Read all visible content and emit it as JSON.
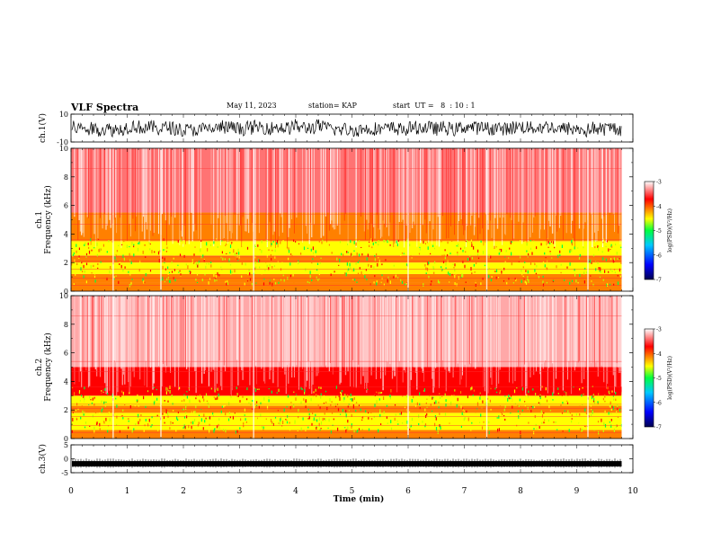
{
  "header": {
    "title": "VLF Spectra",
    "date": "May 11, 2023",
    "station": "station= KAP",
    "start_time": "start  UT =   8  : 10 : 1"
  },
  "chart_data": [
    {
      "type": "line",
      "panel": "ch1-waveform",
      "ylabel": "ch.1(V)",
      "ylim": [
        -10,
        10
      ],
      "yticks": [
        "10",
        "-10"
      ],
      "xlim": [
        0,
        10
      ],
      "amplitude_note": "dense noise trace between about -8 and 8 V, centered near 0",
      "x": [
        0,
        9.8
      ]
    },
    {
      "type": "heatmap",
      "panel": "ch1-spectrogram",
      "ylabel": "ch.1\nFrequency (kHz)",
      "ylim": [
        0,
        10
      ],
      "yticks": [
        "0",
        "2",
        "4",
        "6",
        "8",
        "10"
      ],
      "xlim": [
        0,
        10
      ],
      "data_extent_min": 9.8,
      "bands": [
        {
          "from": 0,
          "to": 0.6,
          "level": -4.0
        },
        {
          "from": 0.6,
          "to": 1.2,
          "level": -4.3
        },
        {
          "from": 1.2,
          "to": 2.0,
          "level": -4.9
        },
        {
          "from": 2.0,
          "to": 2.5,
          "level": -4.2
        },
        {
          "from": 2.5,
          "to": 3.5,
          "level": -4.7
        },
        {
          "from": 3.5,
          "to": 5.5,
          "level": -3.9
        },
        {
          "from": 5.5,
          "to": 10,
          "level": -3.4
        }
      ],
      "colorbar": {
        "label": "log(PSD)(V²/Hz)",
        "range": [
          -7,
          -3
        ],
        "ticks": [
          "-3",
          "-4",
          "-5",
          "-6",
          "-7"
        ]
      }
    },
    {
      "type": "heatmap",
      "panel": "ch2-spectrogram",
      "ylabel": "ch.2\nFrequency (kHz)",
      "ylim": [
        0,
        10
      ],
      "yticks": [
        "0",
        "2",
        "4",
        "6",
        "8",
        "10"
      ],
      "xlim": [
        0,
        10
      ],
      "data_extent_min": 9.8,
      "bands": [
        {
          "from": 0,
          "to": 0.6,
          "level": -4.0
        },
        {
          "from": 0.6,
          "to": 1.8,
          "level": -4.8
        },
        {
          "from": 1.8,
          "to": 2.3,
          "level": -4.2
        },
        {
          "from": 2.3,
          "to": 3.0,
          "level": -4.6
        },
        {
          "from": 3.0,
          "to": 5.0,
          "level": -3.8
        },
        {
          "from": 5.0,
          "to": 10,
          "level": -3.2
        }
      ],
      "colorbar": {
        "label": "log(PSD)(V²/Hz)",
        "range": [
          -7,
          -3
        ],
        "ticks": [
          "-3",
          "-4",
          "-5",
          "-6",
          "-7"
        ]
      }
    },
    {
      "type": "line",
      "panel": "ch3-waveform",
      "ylabel": "ch.3(V)",
      "ylim": [
        -5,
        5
      ],
      "yticks": [
        "5",
        "0",
        "-5"
      ],
      "xlim": [
        0,
        10
      ],
      "amplitude_note": "thick flat trace centered near -1.8 V",
      "x": [
        0,
        9.8
      ]
    }
  ],
  "x_axis": {
    "label": "Time (min)",
    "ticks": [
      "0",
      "1",
      "2",
      "3",
      "4",
      "5",
      "6",
      "7",
      "8",
      "9",
      "10"
    ]
  },
  "colors": {
    "spectrogram_background": "#ffffff",
    "colormap": [
      "#000060",
      "#0000ff",
      "#00c0ff",
      "#00ff60",
      "#ffff00",
      "#ff8000",
      "#ff0000",
      "#ffffff"
    ]
  }
}
